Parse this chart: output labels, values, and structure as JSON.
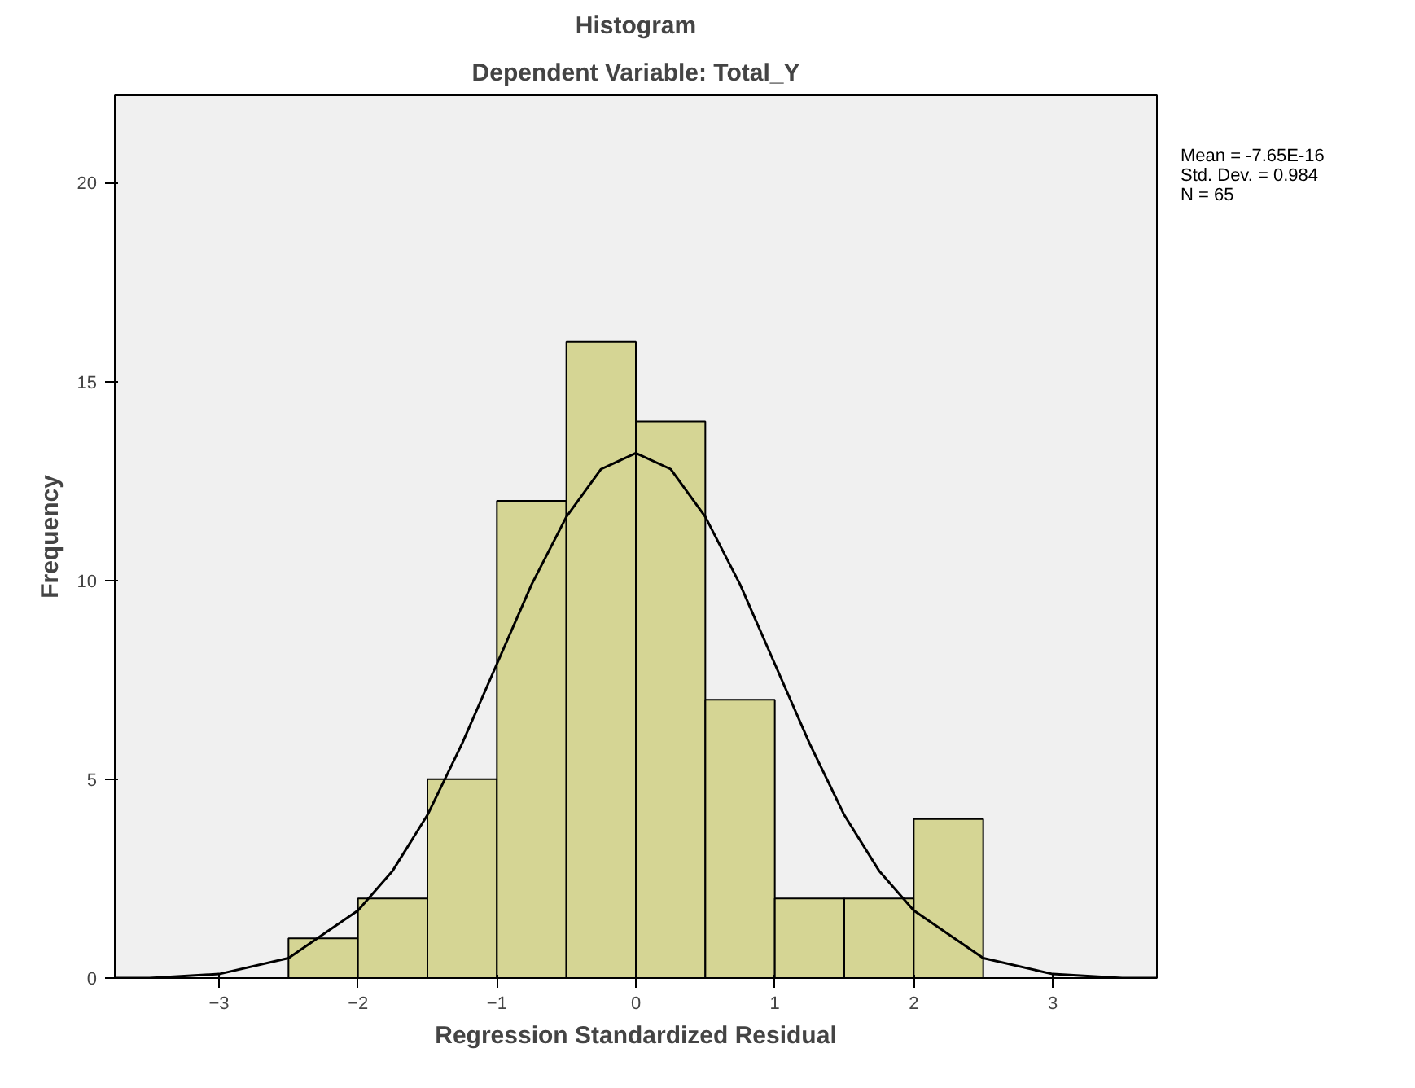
{
  "chart_data": {
    "type": "histogram",
    "title": "Histogram",
    "subtitle": "Dependent Variable: Total_Y",
    "xlabel": "Regression Standardized Residual",
    "ylabel": "Frequency",
    "bins": [
      -2.5,
      -2.0,
      -1.5,
      -1.0,
      -0.5,
      0.0,
      0.5,
      1.0,
      1.5,
      2.0,
      2.5
    ],
    "values": [
      1,
      2,
      5,
      12,
      16,
      14,
      7,
      2,
      2,
      4
    ],
    "color": "#d2d28a",
    "series": [
      {
        "type": "line",
        "color": "#000000",
        "x": [
          -3.75,
          -3.5,
          -3,
          -2.5,
          -2,
          -1.75,
          -1.5,
          -1.25,
          -1,
          -0.75,
          -0.5,
          -0.25,
          0,
          0.25,
          0.5,
          0.75,
          1,
          1.25,
          1.5,
          1.75,
          2,
          2.5,
          3,
          3.5,
          3.75
        ],
        "values": [
          0.0,
          0.0,
          0.1,
          0.5,
          1.7,
          2.7,
          4.1,
          5.9,
          7.9,
          9.9,
          11.6,
          12.8,
          13.2,
          12.8,
          11.6,
          9.9,
          7.9,
          5.9,
          4.1,
          2.7,
          1.7,
          0.5,
          0.1,
          0.0,
          0.0
        ]
      }
    ],
    "xlim": [
      -3.75,
      3.75
    ],
    "ylim": [
      0,
      22.2
    ],
    "xticks": [
      -3,
      -2,
      -1,
      0,
      1,
      2,
      3
    ],
    "yticks": [
      0,
      5,
      10,
      15,
      20
    ],
    "grid": false,
    "annotations": [
      "Mean = -7.65E-16\nStd. Dev. = 0.984\nN = 65"
    ]
  }
}
